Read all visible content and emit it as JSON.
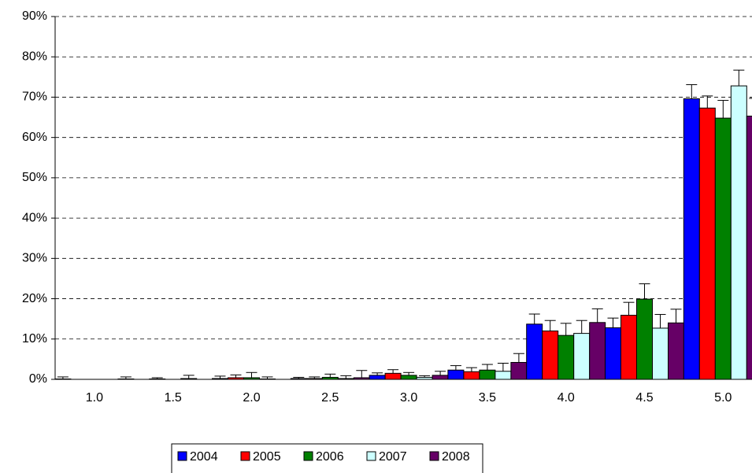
{
  "chart_data": {
    "type": "bar",
    "categories": [
      "1.0",
      "1.5",
      "2.0",
      "2.5",
      "3.0",
      "3.5",
      "4.0",
      "4.5",
      "5.0"
    ],
    "series": [
      {
        "name": "2004",
        "color": "#0000ff",
        "values": [
          0.1,
          0,
          0.2,
          0.2,
          1.0,
          2.3,
          13.7,
          12.8,
          69.6
        ],
        "errors": [
          0.5,
          0,
          0.6,
          0.3,
          0.6,
          1.1,
          2.5,
          2.4,
          3.5
        ]
      },
      {
        "name": "2005",
        "color": "#ff0000",
        "values": [
          0,
          0.1,
          0.4,
          0.2,
          1.5,
          1.9,
          12.0,
          15.9,
          67.3
        ],
        "errors": [
          0,
          0.3,
          0.7,
          0.4,
          0.9,
          1.0,
          2.6,
          3.2,
          3.0
        ]
      },
      {
        "name": "2006",
        "color": "#008000",
        "values": [
          0,
          0,
          0.4,
          0.5,
          1.0,
          2.3,
          10.9,
          19.9,
          64.8
        ],
        "errors": [
          0,
          0,
          1.3,
          0.8,
          0.7,
          1.4,
          3.0,
          3.8,
          4.4
        ]
      },
      {
        "name": "2007",
        "color": "#ccffff",
        "values": [
          0,
          0.2,
          0.1,
          0.2,
          0.5,
          2.0,
          11.4,
          12.7,
          72.8
        ],
        "errors": [
          0,
          0.8,
          0.5,
          0.7,
          0.4,
          2.0,
          3.2,
          3.4,
          3.9
        ]
      },
      {
        "name": "2008",
        "color": "#660066",
        "values": [
          0.1,
          0,
          0,
          0.4,
          1.0,
          4.2,
          14.1,
          14.0,
          65.3
        ],
        "errors": [
          0.5,
          0,
          0,
          1.8,
          1.0,
          2.2,
          3.4,
          3.4,
          4.4
        ]
      }
    ],
    "ylim": [
      0,
      90
    ],
    "yticks": [
      {
        "value": 0,
        "label": "0%"
      },
      {
        "value": 10,
        "label": "10%"
      },
      {
        "value": 20,
        "label": "20%"
      },
      {
        "value": 30,
        "label": "30%"
      },
      {
        "value": 40,
        "label": "40%"
      },
      {
        "value": 50,
        "label": "50%"
      },
      {
        "value": 60,
        "label": "60%"
      },
      {
        "value": 70,
        "label": "70%"
      },
      {
        "value": 80,
        "label": "80%"
      },
      {
        "value": 90,
        "label": "90%"
      }
    ],
    "grid": true,
    "legend": "bottom"
  }
}
